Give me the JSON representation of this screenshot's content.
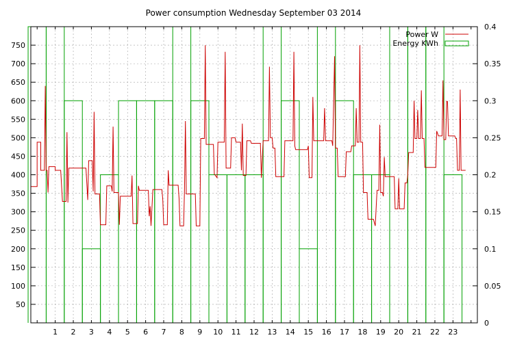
{
  "chart_data": {
    "type": "line",
    "title": "Power consumption Wednesday September 03 2014",
    "xlabel": "",
    "ylabel": "",
    "x_ticks": [
      1,
      2,
      3,
      4,
      5,
      6,
      7,
      8,
      9,
      10,
      11,
      12,
      13,
      14,
      15,
      16,
      17,
      18,
      19,
      20,
      21,
      22,
      23
    ],
    "y1_ticks": [
      50,
      100,
      150,
      200,
      250,
      300,
      350,
      400,
      450,
      500,
      550,
      600,
      650,
      700,
      750
    ],
    "y2_ticks": [
      "0",
      "0.05",
      "0.1",
      "0.15",
      "0.2",
      "0.25",
      "0.3",
      "0.35",
      "0.4"
    ],
    "ylim": [
      0,
      800
    ],
    "y2lim": [
      0,
      0.4
    ],
    "xlim": [
      -0.35,
      24.35
    ],
    "grid": true,
    "legend_position": "top-right",
    "series": [
      {
        "name": "Power W",
        "axis": "y1",
        "style": "line",
        "color": "#cc0000",
        "points": [
          [
            -0.35,
            368
          ],
          [
            0.0,
            368
          ],
          [
            0.0,
            488
          ],
          [
            0.2,
            488
          ],
          [
            0.2,
            412
          ],
          [
            0.4,
            412
          ],
          [
            0.45,
            640
          ],
          [
            0.5,
            412
          ],
          [
            0.55,
            412
          ],
          [
            0.6,
            352
          ],
          [
            0.65,
            422
          ],
          [
            1.0,
            422
          ],
          [
            1.0,
            412
          ],
          [
            1.3,
            412
          ],
          [
            1.35,
            372
          ],
          [
            1.4,
            328
          ],
          [
            1.6,
            328
          ],
          [
            1.65,
            515
          ],
          [
            1.7,
            325
          ],
          [
            1.75,
            418
          ],
          [
            2.7,
            418
          ],
          [
            2.8,
            332
          ],
          [
            2.85,
            438
          ],
          [
            3.05,
            438
          ],
          [
            3.1,
            355
          ],
          [
            3.15,
            570
          ],
          [
            3.2,
            348
          ],
          [
            3.45,
            348
          ],
          [
            3.5,
            265
          ],
          [
            3.8,
            265
          ],
          [
            3.85,
            370
          ],
          [
            4.1,
            370
          ],
          [
            4.15,
            355
          ],
          [
            4.2,
            530
          ],
          [
            4.25,
            352
          ],
          [
            4.5,
            352
          ],
          [
            4.55,
            265
          ],
          [
            4.6,
            342
          ],
          [
            5.2,
            342
          ],
          [
            5.25,
            398
          ],
          [
            5.3,
            268
          ],
          [
            5.55,
            268
          ],
          [
            5.6,
            370
          ],
          [
            5.65,
            358
          ],
          [
            5.8,
            358
          ],
          [
            6.15,
            358
          ],
          [
            6.2,
            288
          ],
          [
            6.25,
            315
          ],
          [
            6.3,
            262
          ],
          [
            6.35,
            312
          ],
          [
            6.4,
            360
          ],
          [
            6.9,
            360
          ],
          [
            6.95,
            332
          ],
          [
            7.0,
            265
          ],
          [
            7.2,
            265
          ],
          [
            7.25,
            412
          ],
          [
            7.3,
            372
          ],
          [
            7.8,
            372
          ],
          [
            7.85,
            335
          ],
          [
            7.9,
            262
          ],
          [
            8.1,
            262
          ],
          [
            8.15,
            362
          ],
          [
            8.2,
            545
          ],
          [
            8.25,
            348
          ],
          [
            8.75,
            348
          ],
          [
            8.8,
            262
          ],
          [
            9.0,
            262
          ],
          [
            9.05,
            498
          ],
          [
            9.25,
            498
          ],
          [
            9.3,
            750
          ],
          [
            9.35,
            482
          ],
          [
            9.75,
            482
          ],
          [
            9.8,
            402
          ],
          [
            9.95,
            392
          ],
          [
            10.0,
            488
          ],
          [
            10.35,
            488
          ],
          [
            10.4,
            732
          ],
          [
            10.45,
            418
          ],
          [
            10.7,
            418
          ],
          [
            10.75,
            500
          ],
          [
            10.95,
            500
          ],
          [
            11.0,
            488
          ],
          [
            11.25,
            488
          ],
          [
            11.3,
            412
          ],
          [
            11.35,
            538
          ],
          [
            11.4,
            398
          ],
          [
            11.55,
            398
          ],
          [
            11.6,
            492
          ],
          [
            11.8,
            492
          ],
          [
            11.85,
            485
          ],
          [
            12.35,
            485
          ],
          [
            12.4,
            392
          ],
          [
            12.5,
            492
          ],
          [
            12.8,
            492
          ],
          [
            12.85,
            692
          ],
          [
            12.9,
            500
          ],
          [
            13.0,
            500
          ],
          [
            13.05,
            472
          ],
          [
            13.15,
            472
          ],
          [
            13.2,
            395
          ],
          [
            13.65,
            395
          ],
          [
            13.7,
            492
          ],
          [
            14.15,
            492
          ],
          [
            14.2,
            732
          ],
          [
            14.25,
            478
          ],
          [
            14.3,
            468
          ],
          [
            14.95,
            468
          ],
          [
            15.0,
            478
          ],
          [
            15.05,
            392
          ],
          [
            15.2,
            392
          ],
          [
            15.25,
            610
          ],
          [
            15.3,
            492
          ],
          [
            15.85,
            492
          ],
          [
            15.9,
            580
          ],
          [
            15.95,
            492
          ],
          [
            16.3,
            492
          ],
          [
            16.35,
            478
          ],
          [
            16.45,
            720
          ],
          [
            16.5,
            472
          ],
          [
            16.6,
            472
          ],
          [
            16.65,
            395
          ],
          [
            17.05,
            395
          ],
          [
            17.1,
            462
          ],
          [
            17.35,
            462
          ],
          [
            17.4,
            478
          ],
          [
            17.6,
            478
          ],
          [
            17.65,
            580
          ],
          [
            17.7,
            488
          ],
          [
            17.8,
            488
          ],
          [
            17.85,
            750
          ],
          [
            17.9,
            488
          ],
          [
            18.0,
            488
          ],
          [
            18.05,
            352
          ],
          [
            18.25,
            352
          ],
          [
            18.3,
            280
          ],
          [
            18.6,
            280
          ],
          [
            18.7,
            262
          ],
          [
            18.8,
            358
          ],
          [
            18.9,
            358
          ],
          [
            18.95,
            535
          ],
          [
            19.0,
            352
          ],
          [
            19.1,
            352
          ],
          [
            19.15,
            342
          ],
          [
            19.2,
            448
          ],
          [
            19.25,
            395
          ],
          [
            19.75,
            395
          ],
          [
            19.8,
            308
          ],
          [
            19.95,
            308
          ],
          [
            20.0,
            390
          ],
          [
            20.05,
            308
          ],
          [
            20.3,
            308
          ],
          [
            20.35,
            378
          ],
          [
            20.45,
            378
          ],
          [
            20.5,
            400
          ],
          [
            20.55,
            460
          ],
          [
            20.8,
            460
          ],
          [
            20.85,
            600
          ],
          [
            20.9,
            498
          ],
          [
            21.0,
            498
          ],
          [
            21.05,
            575
          ],
          [
            21.1,
            498
          ],
          [
            21.2,
            498
          ],
          [
            21.25,
            628
          ],
          [
            21.3,
            498
          ],
          [
            21.4,
            498
          ],
          [
            21.45,
            420
          ],
          [
            22.05,
            420
          ],
          [
            22.1,
            518
          ],
          [
            22.2,
            505
          ],
          [
            22.4,
            505
          ],
          [
            22.45,
            655
          ],
          [
            22.5,
            495
          ],
          [
            22.6,
            495
          ],
          [
            22.65,
            598
          ],
          [
            22.7,
            598
          ],
          [
            22.75,
            505
          ],
          [
            23.1,
            505
          ],
          [
            23.15,
            498
          ],
          [
            23.2,
            498
          ],
          [
            23.25,
            412
          ],
          [
            23.35,
            412
          ],
          [
            23.4,
            630
          ],
          [
            23.45,
            412
          ],
          [
            23.7,
            412
          ]
        ]
      },
      {
        "name": "Energy KWh",
        "axis": "y2",
        "style": "histeps",
        "color": "#00a000",
        "values": [
          0.4,
          0.4,
          0.3,
          0.1,
          0.2,
          0.3,
          0.3,
          0.3,
          0.4,
          0.3,
          0.2,
          0.2,
          0.2,
          0.4,
          0.3,
          0.1,
          0.4,
          0.3,
          0.2,
          0.2,
          0.4,
          0.4,
          0.4,
          0.2
        ]
      }
    ]
  }
}
